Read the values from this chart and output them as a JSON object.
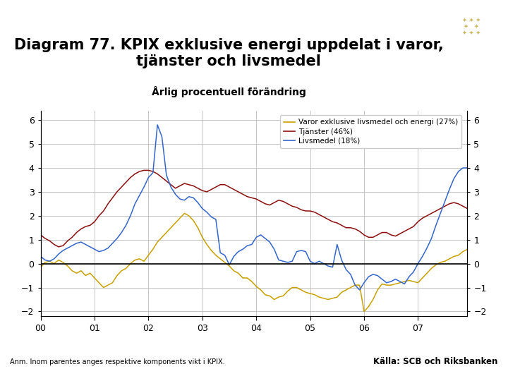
{
  "title_line1": "Diagram 77. KPIX exklusive energi uppdelat i varor,",
  "title_line2": "tjänster och livsmedel",
  "subtitle": "Årlig procentuell förändring",
  "title_fontsize": 15,
  "subtitle_fontsize": 11,
  "legend_labels": [
    "Varor exklusive livsmedel och energi (27%)",
    "Tjänster (46%)",
    "Livsmedel (18%)"
  ],
  "line_colors": [
    "#C8A000",
    "#8B1010",
    "#3366CC"
  ],
  "ylim": [
    -2.2,
    6.4
  ],
  "yticks": [
    -2,
    -1,
    0,
    1,
    2,
    3,
    4,
    5,
    6
  ],
  "xtick_labels": [
    "00",
    "01",
    "02",
    "03",
    "04",
    "05",
    "06",
    "07"
  ],
  "background_color": "#FFFFFF",
  "footer_bar_color": "#1F3A6E",
  "footer_left": "Anm. Inom parentes anges respektive komponents vikt i KPIX.",
  "footer_right": "Källa: SCB och Riksbanken",
  "n_months": 96,
  "varor": [
    -0.15,
    0.05,
    0.1,
    0.0,
    0.15,
    0.05,
    -0.1,
    -0.3,
    -0.4,
    -0.3,
    -0.5,
    -0.4,
    -0.6,
    -0.8,
    -1.0,
    -0.9,
    -0.8,
    -0.5,
    -0.3,
    -0.2,
    0.0,
    0.15,
    0.2,
    0.1,
    0.35,
    0.6,
    0.9,
    1.1,
    1.3,
    1.5,
    1.7,
    1.9,
    2.1,
    2.0,
    1.8,
    1.5,
    1.1,
    0.8,
    0.55,
    0.35,
    0.2,
    0.05,
    -0.1,
    -0.3,
    -0.4,
    -0.6,
    -0.6,
    -0.75,
    -0.95,
    -1.1,
    -1.3,
    -1.35,
    -1.5,
    -1.4,
    -1.35,
    -1.15,
    -1.0,
    -1.0,
    -1.1,
    -1.2,
    -1.25,
    -1.3,
    -1.4,
    -1.45,
    -1.5,
    -1.45,
    -1.4,
    -1.2,
    -1.1,
    -1.0,
    -0.9,
    -0.9,
    -2.0,
    -1.8,
    -1.5,
    -1.1,
    -0.85,
    -0.9,
    -0.9,
    -0.85,
    -0.8,
    -0.75,
    -0.7,
    -0.75,
    -0.8,
    -0.6,
    -0.4,
    -0.2,
    -0.05,
    0.05,
    0.1,
    0.2,
    0.3,
    0.35,
    0.5,
    0.6
  ],
  "tjanster": [
    1.2,
    1.05,
    0.95,
    0.8,
    0.7,
    0.75,
    0.95,
    1.1,
    1.3,
    1.45,
    1.55,
    1.6,
    1.75,
    2.0,
    2.2,
    2.5,
    2.75,
    3.0,
    3.2,
    3.4,
    3.6,
    3.75,
    3.85,
    3.9,
    3.9,
    3.85,
    3.75,
    3.6,
    3.45,
    3.3,
    3.15,
    3.25,
    3.35,
    3.3,
    3.25,
    3.15,
    3.05,
    3.0,
    3.1,
    3.2,
    3.3,
    3.3,
    3.2,
    3.1,
    3.0,
    2.9,
    2.8,
    2.75,
    2.7,
    2.6,
    2.5,
    2.45,
    2.55,
    2.65,
    2.6,
    2.5,
    2.4,
    2.35,
    2.25,
    2.2,
    2.2,
    2.15,
    2.05,
    1.95,
    1.85,
    1.75,
    1.7,
    1.6,
    1.5,
    1.5,
    1.45,
    1.35,
    1.2,
    1.1,
    1.1,
    1.2,
    1.3,
    1.3,
    1.2,
    1.15,
    1.25,
    1.35,
    1.45,
    1.55,
    1.75,
    1.9,
    2.0,
    2.1,
    2.2,
    2.3,
    2.4,
    2.5,
    2.55,
    2.5,
    2.4,
    2.3
  ],
  "livsmedel": [
    0.3,
    0.15,
    0.1,
    0.2,
    0.4,
    0.55,
    0.65,
    0.75,
    0.85,
    0.9,
    0.8,
    0.7,
    0.6,
    0.5,
    0.55,
    0.65,
    0.85,
    1.05,
    1.3,
    1.6,
    2.0,
    2.5,
    2.85,
    3.2,
    3.6,
    3.8,
    5.8,
    5.3,
    3.7,
    3.2,
    2.9,
    2.7,
    2.65,
    2.8,
    2.75,
    2.55,
    2.3,
    2.15,
    1.95,
    1.85,
    0.45,
    0.35,
    -0.05,
    0.3,
    0.5,
    0.6,
    0.75,
    0.8,
    1.1,
    1.2,
    1.05,
    0.9,
    0.6,
    0.15,
    0.1,
    0.05,
    0.1,
    0.5,
    0.55,
    0.5,
    0.1,
    0.0,
    0.1,
    0.0,
    -0.1,
    -0.15,
    0.8,
    0.15,
    -0.25,
    -0.45,
    -0.9,
    -1.1,
    -0.8,
    -0.55,
    -0.45,
    -0.5,
    -0.65,
    -0.8,
    -0.75,
    -0.65,
    -0.75,
    -0.85,
    -0.55,
    -0.35,
    0.0,
    0.3,
    0.65,
    1.05,
    1.6,
    2.1,
    2.6,
    3.1,
    3.55,
    3.85,
    4.0,
    4.0
  ]
}
